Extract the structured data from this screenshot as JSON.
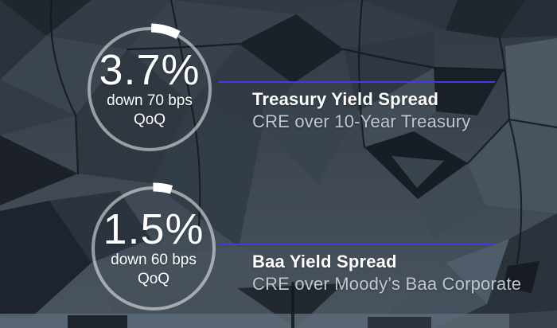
{
  "theme": {
    "accent_line_color": "#4639e4",
    "ring_color": "rgba(255,255,255,0.52)",
    "value_color": "#ffffff",
    "title_color": "#ffffff",
    "subtitle_color": "#c0c7cf",
    "background_base_color": "#323a45",
    "background_dark_facet_color": "#1b2129",
    "background_light_facet_color": "#4e5a66"
  },
  "stats": [
    {
      "value": "3.7%",
      "change_line1": "down 70 bps",
      "change_line2": "QoQ",
      "title": "Treasury Yield Spread",
      "subtitle": "CRE over 10-Year Treasury",
      "gauge_start_deg": 2,
      "gauge_end_deg": 28
    },
    {
      "value": "1.5%",
      "change_line1": "down 60 bps",
      "change_line2": "QoQ",
      "title": "Baa Yield Spread",
      "subtitle": "CRE over Moody’s Baa Corporate",
      "gauge_start_deg": 0,
      "gauge_end_deg": 17
    }
  ],
  "chart_data": [
    {
      "type": "pie",
      "title": "Treasury Yield Spread",
      "subtitle": "CRE over 10-Year Treasury",
      "value": 3.7,
      "unit": "%",
      "change_bps": -70,
      "period": "QoQ",
      "annotation": "down 70 bps QoQ"
    },
    {
      "type": "pie",
      "title": "Baa Yield Spread",
      "subtitle": "CRE over Moody’s Baa Corporate",
      "value": 1.5,
      "unit": "%",
      "change_bps": -60,
      "period": "QoQ",
      "annotation": "down 60 bps QoQ"
    }
  ]
}
